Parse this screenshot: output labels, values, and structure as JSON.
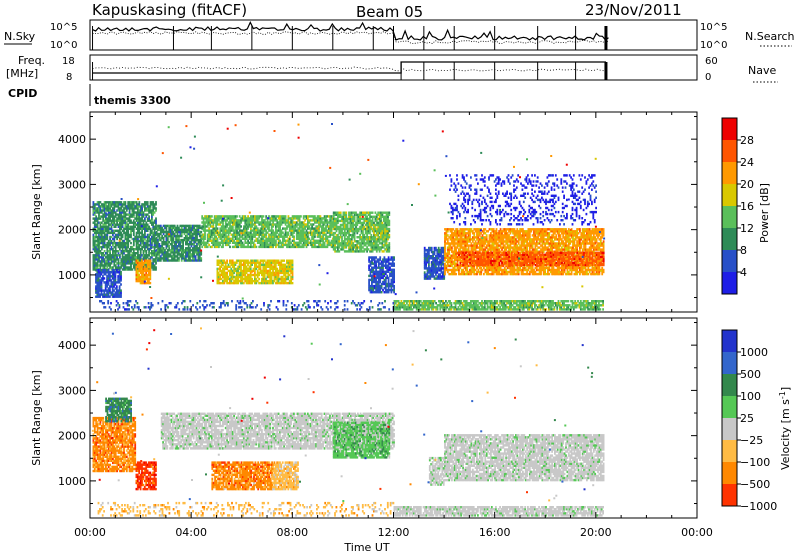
{
  "header": {
    "station": "Kapuskasing (fitACF)",
    "beam": "Beam 05",
    "date": "23/Nov/2011"
  },
  "top_panels": {
    "nsky_label": "N.Sky",
    "nsearch_label": "N.Search",
    "freq_label_line1": "Freq.",
    "freq_label_line2": "[MHz]",
    "nave_label": "Nave",
    "cpid_label": "CPID",
    "cpid_value": "themis 3300",
    "noise_left_ticks": [
      "10^5",
      "10^0"
    ],
    "noise_right_ticks": [
      "10^5",
      "10^0"
    ],
    "freq_left_ticks": [
      "18",
      "8"
    ],
    "freq_right_ticks": [
      "60",
      "0"
    ]
  },
  "colors": {
    "power_scale": [
      "#1e1ee6",
      "#2850c8",
      "#2e8b57",
      "#5abf5a",
      "#d9c800",
      "#ff9900",
      "#ff5500",
      "#ee0000"
    ],
    "velocity_scale": [
      "#2233cc",
      "#3366cc",
      "#33884c",
      "#55c855",
      "#c8c8c8",
      "#c8c8c8",
      "#ffbb44",
      "#ff8800",
      "#ff3300",
      "#ee0000"
    ],
    "ground_scatter": "#c8c8c8"
  },
  "chart_data": [
    {
      "type": "heatmap",
      "name": "power",
      "ylabel": "Slant Range [km]",
      "colorbar_label": "Power [dB]",
      "colorbar_ticks": [
        "4",
        "8",
        "12",
        "16",
        "20",
        "24",
        "28"
      ],
      "ylim": [
        180,
        4600
      ],
      "y_ticks": [
        1000,
        2000,
        3000,
        4000
      ],
      "xlim_hours": [
        0,
        24
      ],
      "regions": [
        {
          "t0": 0.1,
          "t1": 2.6,
          "r0": 1100,
          "r1": 2600,
          "level": 2
        },
        {
          "t0": 0.2,
          "t1": 1.2,
          "r0": 500,
          "r1": 1100,
          "level": 1
        },
        {
          "t0": 1.8,
          "t1": 2.4,
          "r0": 800,
          "r1": 1300,
          "level": 5
        },
        {
          "t0": 2.6,
          "t1": 4.4,
          "r0": 1300,
          "r1": 2100,
          "level": 2
        },
        {
          "t0": 4.4,
          "t1": 9.6,
          "r0": 1600,
          "r1": 2300,
          "level": 3
        },
        {
          "t0": 5.0,
          "t1": 8.0,
          "r0": 800,
          "r1": 1300,
          "level": 4
        },
        {
          "t0": 9.6,
          "t1": 11.8,
          "r0": 1500,
          "r1": 2400,
          "level": 3
        },
        {
          "t0": 11.0,
          "t1": 12.0,
          "r0": 600,
          "r1": 1400,
          "level": 1
        },
        {
          "t0": 13.2,
          "t1": 14.0,
          "r0": 900,
          "r1": 1600,
          "level": 1
        },
        {
          "t0": 14.0,
          "t1": 20.3,
          "r0": 1000,
          "r1": 2000,
          "level": 5
        },
        {
          "t0": 14.5,
          "t1": 20.3,
          "r0": 1200,
          "r1": 1500,
          "level": 6
        },
        {
          "t0": 14.2,
          "t1": 20.0,
          "r0": 2100,
          "r1": 3200,
          "level": 0,
          "sparse": true
        },
        {
          "t0": 12.0,
          "t1": 20.3,
          "r0": 220,
          "r1": 420,
          "level": 3
        },
        {
          "t0": 0.3,
          "t1": 12.0,
          "r0": 220,
          "r1": 420,
          "level": 1,
          "sparse": true
        }
      ]
    },
    {
      "type": "heatmap",
      "name": "velocity",
      "ylabel": "Slant Range [km]",
      "colorbar_label": "Velocity [m s",
      "colorbar_label_sup": "-1",
      "colorbar_label_end": "]",
      "colorbar_ticks": [
        "1000",
        "500",
        "100",
        "25",
        "−25",
        "−100",
        "−500",
        "−1000"
      ],
      "ylim": [
        180,
        4600
      ],
      "y_ticks": [
        1000,
        2000,
        3000,
        4000
      ],
      "xlim_hours": [
        0,
        24
      ],
      "regions": [
        {
          "t0": 0.1,
          "t1": 1.8,
          "r0": 1200,
          "r1": 2400,
          "level": 7
        },
        {
          "t0": 0.6,
          "t1": 1.6,
          "r0": 2300,
          "r1": 2800,
          "level": 2
        },
        {
          "t0": 1.8,
          "t1": 2.6,
          "r0": 800,
          "r1": 1400,
          "level": 8
        },
        {
          "t0": 2.8,
          "t1": 12.0,
          "r0": 1700,
          "r1": 2500,
          "level": 4
        },
        {
          "t0": 4.8,
          "t1": 7.2,
          "r0": 800,
          "r1": 1400,
          "level": 7
        },
        {
          "t0": 7.2,
          "t1": 8.2,
          "r0": 800,
          "r1": 1400,
          "level": 6
        },
        {
          "t0": 9.6,
          "t1": 11.8,
          "r0": 1500,
          "r1": 2300,
          "level": 3
        },
        {
          "t0": 14.0,
          "t1": 20.3,
          "r0": 1000,
          "r1": 2000,
          "level": 4
        },
        {
          "t0": 13.4,
          "t1": 14.0,
          "r0": 900,
          "r1": 1500,
          "level": 4
        },
        {
          "t0": 12.0,
          "t1": 20.3,
          "r0": 220,
          "r1": 420,
          "level": 4
        },
        {
          "t0": 0.3,
          "t1": 12.0,
          "r0": 220,
          "r1": 500,
          "level": 6,
          "sparse": true
        }
      ]
    }
  ],
  "x_axis": {
    "label": "Time UT",
    "ticks": [
      "00:00",
      "04:00",
      "08:00",
      "12:00",
      "16:00",
      "20:00",
      "00:00"
    ]
  }
}
